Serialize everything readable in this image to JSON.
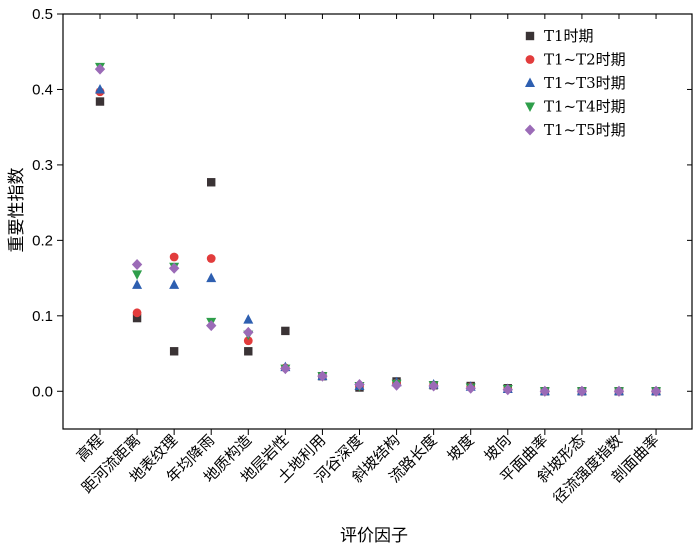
{
  "chart_data": {
    "type": "scatter",
    "xlabel": "评价因子",
    "ylabel": "重要性指数",
    "ylim": [
      -0.05,
      0.5
    ],
    "yticks": [
      "0.0",
      "0.1",
      "0.2",
      "0.3",
      "0.4",
      "0.5"
    ],
    "legend_position": "top-right",
    "categories": [
      "高程",
      "距河流距离",
      "地表纹理",
      "年均降雨",
      "地质构造",
      "地层岩性",
      "土地利用",
      "河谷深度",
      "斜坡结构",
      "流路长度",
      "坡度",
      "坡向",
      "平面曲率",
      "斜坡形态",
      "径流强度指数",
      "剖面曲率"
    ],
    "series": [
      {
        "name": "T1时期",
        "marker": "square",
        "color": "#3a3335",
        "values": [
          0.384,
          0.097,
          0.053,
          0.277,
          0.053,
          0.08,
          0.02,
          0.005,
          0.013,
          0.008,
          0.007,
          0.004,
          0.0,
          0.0,
          0.0,
          0.0
        ]
      },
      {
        "name": "T1~T2时期",
        "marker": "circle",
        "color": "#e23c3c",
        "values": [
          0.397,
          0.104,
          0.178,
          0.176,
          0.067,
          0.031,
          0.02,
          0.007,
          0.011,
          0.008,
          0.006,
          0.003,
          0.0,
          0.0,
          0.0,
          0.0
        ]
      },
      {
        "name": "T1~T3时期",
        "marker": "triangle-up",
        "color": "#2e5fb0",
        "values": [
          0.4,
          0.141,
          0.141,
          0.15,
          0.095,
          0.032,
          0.02,
          0.007,
          0.012,
          0.009,
          0.006,
          0.003,
          0.0,
          0.0,
          0.0,
          0.0
        ]
      },
      {
        "name": "T1~T4时期",
        "marker": "triangle-down",
        "color": "#2e9e4a",
        "values": [
          0.43,
          0.155,
          0.165,
          0.092,
          0.075,
          0.03,
          0.02,
          0.007,
          0.01,
          0.008,
          0.005,
          0.003,
          0.0,
          0.0,
          0.0,
          0.0
        ]
      },
      {
        "name": "T1~T5时期",
        "marker": "diamond",
        "color": "#9b6bb7",
        "values": [
          0.427,
          0.168,
          0.163,
          0.087,
          0.078,
          0.03,
          0.02,
          0.009,
          0.008,
          0.007,
          0.004,
          0.002,
          0.0,
          0.0,
          0.0,
          0.0
        ]
      }
    ]
  }
}
